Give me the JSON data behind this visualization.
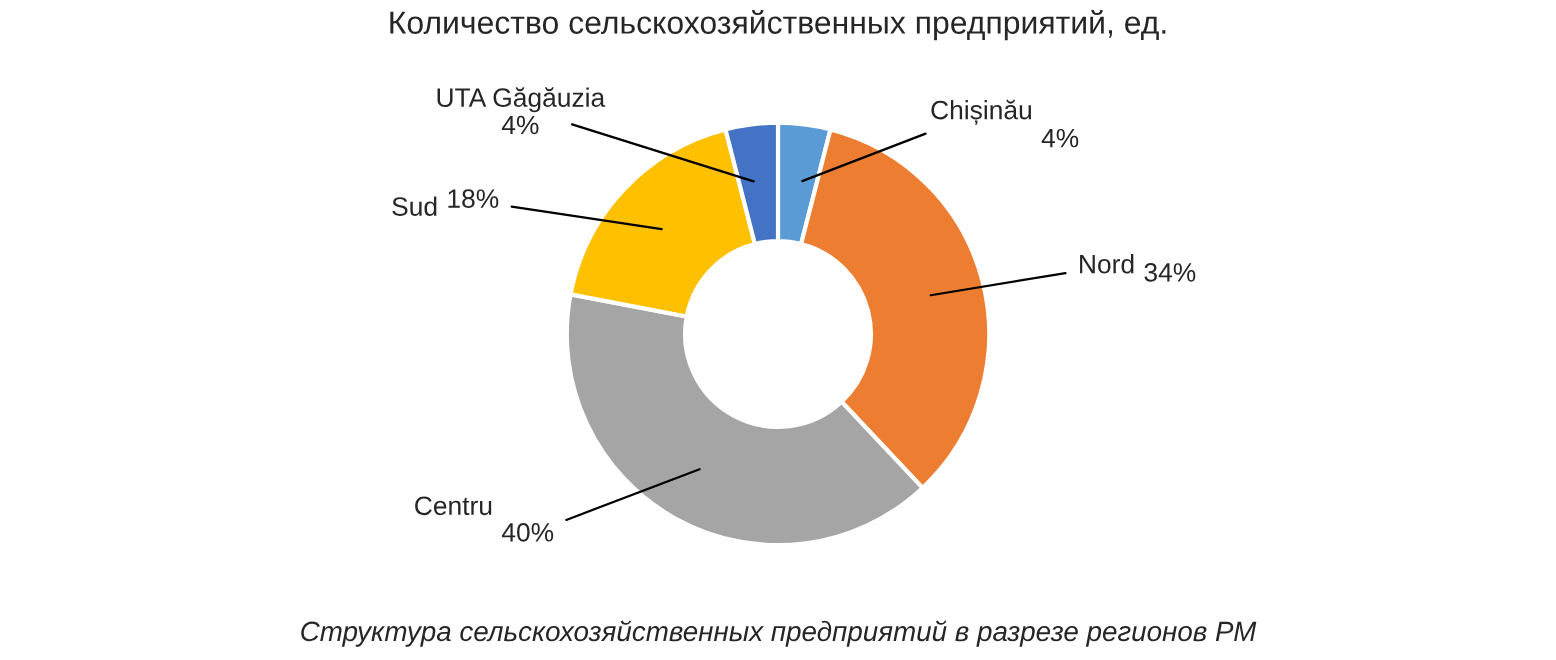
{
  "chart_data": {
    "type": "donut",
    "title": "Количество сельскохозяйственных предприятий, ед.",
    "categories": [
      "Chișinău",
      "Nord",
      "Centru",
      "Sud",
      "UTA Găgăuzia"
    ],
    "values": [
      4,
      34,
      40,
      18,
      4
    ],
    "colors": [
      "#5b9bd5",
      "#ed7d31",
      "#a5a5a5",
      "#ffc000",
      "#4472c4"
    ],
    "value_labels": [
      "4%",
      "34%",
      "40%",
      "18%",
      "4%"
    ],
    "annotations": [
      "Структура сельскохозяйственных предприятий в разрезе регионов РМ"
    ],
    "legend": false
  }
}
